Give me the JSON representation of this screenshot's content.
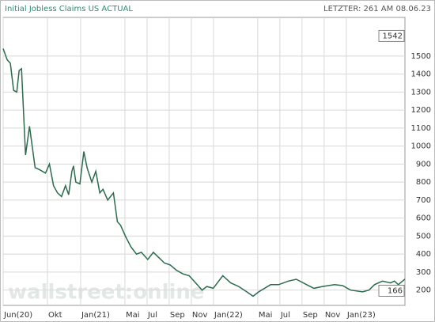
{
  "chart_data": {
    "type": "line",
    "title": "Initial Jobless Claims US ACTUAL",
    "subtitle": "LETZTER: 261 AM 08.06.23",
    "watermark": "wallstreet:online",
    "color": "#2b6b4e",
    "grid": true,
    "x": [
      5.0,
      5.36,
      5.65,
      5.94,
      6.23,
      6.44,
      6.66,
      7.02,
      7.38,
      7.89,
      8.25,
      8.82,
      9.18,
      9.55,
      9.91,
      10.27,
      10.63,
      10.92,
      11.21,
      11.35,
      11.57,
      11.93,
      12.29,
      12.58,
      13.01,
      13.37,
      13.73,
      14.02,
      14.45,
      14.96,
      15.32,
      15.61,
      16.04,
      16.55,
      17.05,
      17.48,
      18.06,
      18.57,
      19.07,
      19.58,
      20.08,
      20.66,
      21.24,
      21.81,
      22.39,
      22.97,
      23.4,
      23.98,
      24.84,
      25.56,
      26.28,
      27.01,
      27.58,
      28.09,
      29.17,
      29.89,
      30.76,
      31.48,
      32.42,
      33.07,
      33.86,
      34.94,
      35.67,
      36.39,
      37.47,
      38.05,
      38.55,
      39.27,
      39.99,
      40.35,
      40.71,
      41.29
    ],
    "values": [
      1542,
      1480,
      1460,
      1310,
      1300,
      1420,
      1430,
      950,
      1110,
      880,
      870,
      850,
      900,
      780,
      740,
      720,
      780,
      730,
      860,
      890,
      800,
      790,
      970,
      880,
      800,
      860,
      740,
      760,
      700,
      740,
      580,
      560,
      500,
      440,
      400,
      410,
      370,
      410,
      380,
      350,
      340,
      310,
      290,
      280,
      240,
      200,
      220,
      210,
      280,
      240,
      220,
      190,
      166,
      190,
      230,
      230,
      250,
      260,
      230,
      210,
      220,
      230,
      225,
      200,
      190,
      200,
      230,
      250,
      240,
      250,
      230,
      261
    ],
    "max": 1542,
    "min": 166,
    "xlim": [
      5,
      41.3
    ],
    "xticks": [
      {
        "value": 5,
        "label": "Jun(20)"
      },
      {
        "value": 9,
        "label": "Okt"
      },
      {
        "value": 12,
        "label": "Jan(21)"
      },
      {
        "value": 16,
        "label": "Mai"
      },
      {
        "value": 18,
        "label": "Jul"
      },
      {
        "value": 20,
        "label": "Sep"
      },
      {
        "value": 22,
        "label": "Nov"
      },
      {
        "value": 24,
        "label": "Jan(22)"
      },
      {
        "value": 28,
        "label": "Mai"
      },
      {
        "value": 30,
        "label": "Jul"
      },
      {
        "value": 32,
        "label": "Sep"
      },
      {
        "value": 34,
        "label": "Nov"
      },
      {
        "value": 36,
        "label": "Jan(23)"
      }
    ],
    "ylim": [
      115,
      1715
    ],
    "yticks": [
      200,
      300,
      400,
      500,
      600,
      700,
      800,
      900,
      1000,
      1100,
      1200,
      1300,
      1400,
      1500
    ]
  }
}
